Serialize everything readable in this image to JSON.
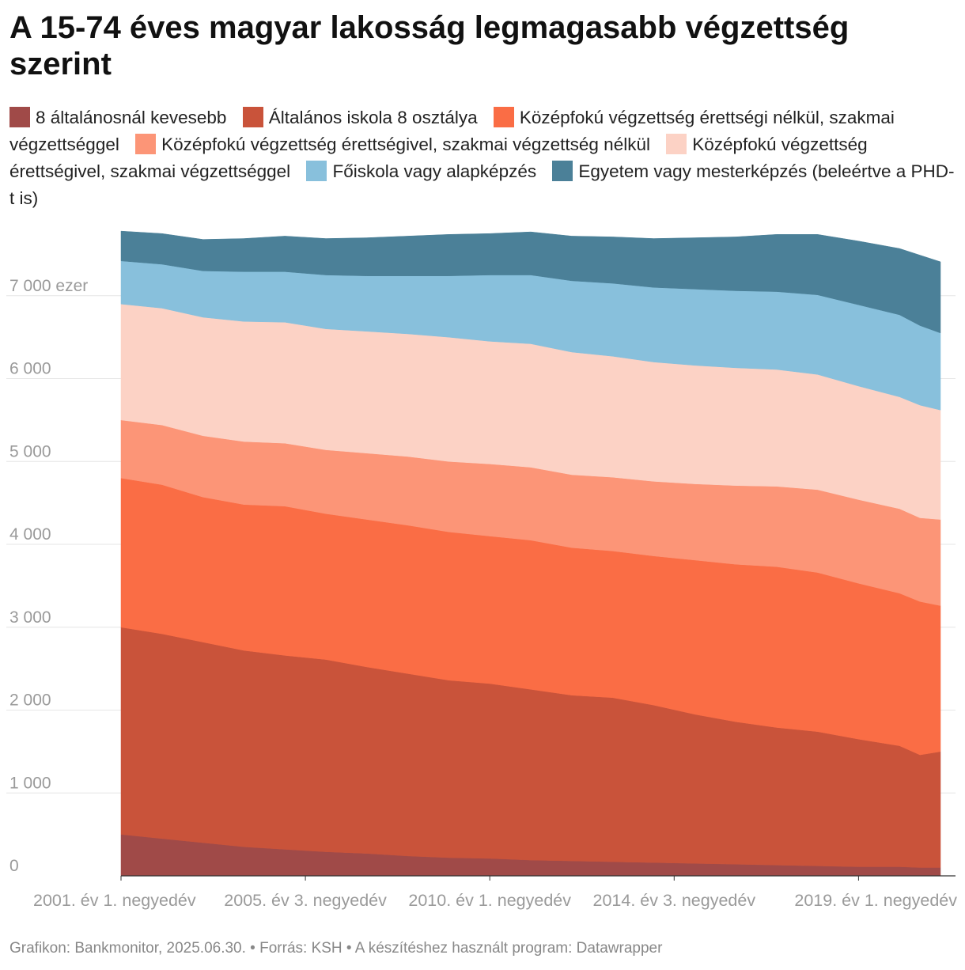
{
  "title": "A 15-74 éves magyar lakosság legmagasabb végzettség szerint",
  "footer": "Grafikon: Bankmonitor, 2025.06.30. • Forrás: KSH • A készítéshez használt program: Datawrapper",
  "chart_data": {
    "type": "area",
    "stacked": true,
    "title": "A 15-74 éves magyar lakosság legmagasabb végzettség szerint",
    "xlabel": "",
    "ylabel": "",
    "unit_label": "ezer",
    "ylim": [
      0,
      7800
    ],
    "yticks": [
      0,
      1000,
      2000,
      3000,
      4000,
      5000,
      6000,
      7000
    ],
    "ytick_labels": [
      "0",
      "1 000",
      "2 000",
      "3 000",
      "4 000",
      "5 000",
      "6 000",
      "7 000 ezer"
    ],
    "xtick_labels": [
      "2001. év 1. negyedév",
      "2005. év 3. negyedév",
      "2010. év 1. negyedév",
      "2014. év 3. negyedév",
      "2019. év 1. negyedév"
    ],
    "xtick_years": [
      2001.0,
      2005.5,
      2010.0,
      2014.5,
      2019.0
    ],
    "x": [
      2001.0,
      2002.0,
      2003.0,
      2004.0,
      2005.0,
      2006.0,
      2007.0,
      2008.0,
      2009.0,
      2010.0,
      2011.0,
      2012.0,
      2013.0,
      2014.0,
      2015.0,
      2016.0,
      2017.0,
      2018.0,
      2019.0,
      2020.0,
      2020.5,
      2021.0
    ],
    "legend_position": "top",
    "series": [
      {
        "name": "8 általánosnál kevesebb",
        "color": "#a04a48",
        "values": [
          500,
          450,
          400,
          350,
          320,
          290,
          270,
          240,
          220,
          210,
          190,
          180,
          170,
          160,
          150,
          140,
          130,
          120,
          110,
          110,
          100,
          100
        ]
      },
      {
        "name": "Általános iskola 8 osztálya",
        "color": "#c9533a",
        "values": [
          2500,
          2470,
          2420,
          2370,
          2340,
          2320,
          2250,
          2200,
          2140,
          2110,
          2060,
          2000,
          1980,
          1900,
          1800,
          1720,
          1660,
          1620,
          1540,
          1460,
          1360,
          1400
        ]
      },
      {
        "name": "Középfokú végzettség érettségi nélkül, szakmai végzettséggel",
        "color": "#fa6d45",
        "values": [
          1800,
          1800,
          1750,
          1760,
          1800,
          1760,
          1780,
          1790,
          1790,
          1780,
          1800,
          1780,
          1770,
          1800,
          1860,
          1900,
          1940,
          1920,
          1880,
          1840,
          1850,
          1760
        ]
      },
      {
        "name": "Középfokú végzettség érettségivel, szakmai végzettség nélkül",
        "color": "#fc9577",
        "values": [
          700,
          720,
          740,
          760,
          760,
          770,
          800,
          830,
          850,
          870,
          880,
          880,
          890,
          900,
          920,
          950,
          970,
          1000,
          1010,
          1020,
          1010,
          1040
        ]
      },
      {
        "name": "Középfokú végzettség érettségivel, szakmai végzettséggel",
        "color": "#fcd2c5",
        "values": [
          1400,
          1410,
          1430,
          1450,
          1460,
          1460,
          1470,
          1480,
          1500,
          1480,
          1490,
          1480,
          1460,
          1440,
          1430,
          1420,
          1410,
          1390,
          1370,
          1350,
          1360,
          1320
        ]
      },
      {
        "name": "Főiskola vagy alapképzés",
        "color": "#88c0dc",
        "values": [
          520,
          530,
          560,
          600,
          610,
          650,
          670,
          700,
          740,
          800,
          830,
          860,
          880,
          900,
          920,
          930,
          940,
          960,
          980,
          990,
          960,
          930
        ]
      },
      {
        "name": "Egyetem vagy mesterképzés (beleértve a PHD-t is)",
        "color": "#4b8098",
        "values": [
          360,
          370,
          380,
          400,
          430,
          440,
          460,
          480,
          500,
          500,
          520,
          540,
          560,
          590,
          620,
          650,
          690,
          730,
          770,
          800,
          850,
          860
        ]
      }
    ]
  }
}
